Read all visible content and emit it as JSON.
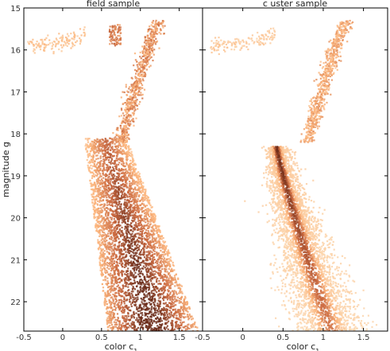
{
  "chart_data": [
    {
      "type": "heatmap",
      "title": "field sample",
      "xlabel": "color c",
      "xlabel_subscript": "1",
      "ylabel": "magnitude g",
      "xlim": [
        -0.5,
        1.8
      ],
      "ylim": [
        22.7,
        15.0
      ],
      "y_inverted": true,
      "x_ticks": [
        "-0.5",
        "0",
        "0.5",
        "1",
        "1.5"
      ],
      "x_tick_values": [
        -0.5,
        0,
        0.5,
        1,
        1.5
      ],
      "y_ticks": [
        "15",
        "16",
        "17",
        "18",
        "19",
        "20",
        "21",
        "22"
      ],
      "y_tick_values": [
        15,
        16,
        17,
        18,
        19,
        20,
        21,
        22
      ],
      "grid": false,
      "colormap": [
        "#fde3c2",
        "#fbb37a",
        "#c9663c",
        "#6a2a18"
      ],
      "density_regions": [
        {
          "feature": "horizontal branch",
          "x_range": [
            -0.45,
            0.3
          ],
          "y": 15.9,
          "level": 0.25
        },
        {
          "feature": "red clump",
          "x_range": [
            0.6,
            0.75
          ],
          "y_range": [
            15.4,
            15.9
          ],
          "level": 0.6
        },
        {
          "feature": "giant branch",
          "x_center_at_bright": 1.25,
          "x_center_at_faint": 0.75,
          "y_range": [
            15.3,
            18.2
          ],
          "level": 0.5
        },
        {
          "feature": "turnoff and main sequence",
          "x_left_top": 0.28,
          "x_right_top": 0.82,
          "x_left_bottom": 0.58,
          "x_right_bottom": 1.75,
          "y_range": [
            18.1,
            22.7
          ],
          "level": 0.9
        }
      ]
    },
    {
      "type": "heatmap",
      "title": "c uster sample",
      "xlabel": "color c",
      "xlabel_subscript": "1",
      "xlim": [
        -0.5,
        1.8
      ],
      "ylim": [
        22.7,
        15.0
      ],
      "y_inverted": true,
      "x_ticks": [
        "-0.5",
        "0",
        "0.5",
        "1",
        "1.5"
      ],
      "x_tick_values": [
        -0.5,
        0,
        0.5,
        1,
        1.5
      ],
      "grid": false,
      "colormap": [
        "#fde3c2",
        "#fbb37a",
        "#c9663c",
        "#6a2a18"
      ],
      "density_regions": [
        {
          "feature": "horizontal branch",
          "x_range": [
            -0.4,
            0.4
          ],
          "y": 15.9,
          "level": 0.2
        },
        {
          "feature": "giant branch",
          "x_center_at_bright": 1.3,
          "x_center_at_faint": 0.8,
          "y_range": [
            15.3,
            18.2
          ],
          "level": 0.4
        },
        {
          "feature": "main sequence ridge",
          "x_center_top": 0.42,
          "x_center_bottom": 1.1,
          "y_range": [
            18.3,
            22.7
          ],
          "level": 1.0
        }
      ]
    }
  ]
}
